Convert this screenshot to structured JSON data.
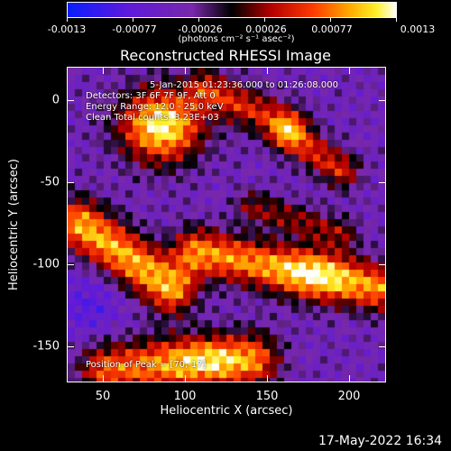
{
  "colorbar": {
    "labels": [
      "-0.0013",
      "-0.00077",
      "-0.00026",
      "0.00026",
      "0.00077",
      "0.0013"
    ],
    "units": "(photons cm⁻² s⁻¹ asec⁻²)"
  },
  "plot": {
    "title": "Reconstructed RHESSI Image",
    "info": {
      "time_range": "5-Jan-2015 01:23:36.000 to 01:26:08.000",
      "detectors": "Detectors: 3F 6F 7F 9F, Att 0",
      "energy": "Energy Range: 12.0 - 25.0 keV",
      "clean": "Clean  Total counts: 3.23E+03",
      "peak": "Position of Peak = [70,-17]"
    },
    "x_ticks": [
      "50",
      "100",
      "150",
      "200"
    ],
    "y_ticks": [
      "0",
      "-50",
      "-100",
      "-150"
    ],
    "xlabel": "Heliocentric X (arcsec)",
    "ylabel": "Heliocentric Y (arcsec)"
  },
  "timestamp": "17-May-2022 16:34"
}
